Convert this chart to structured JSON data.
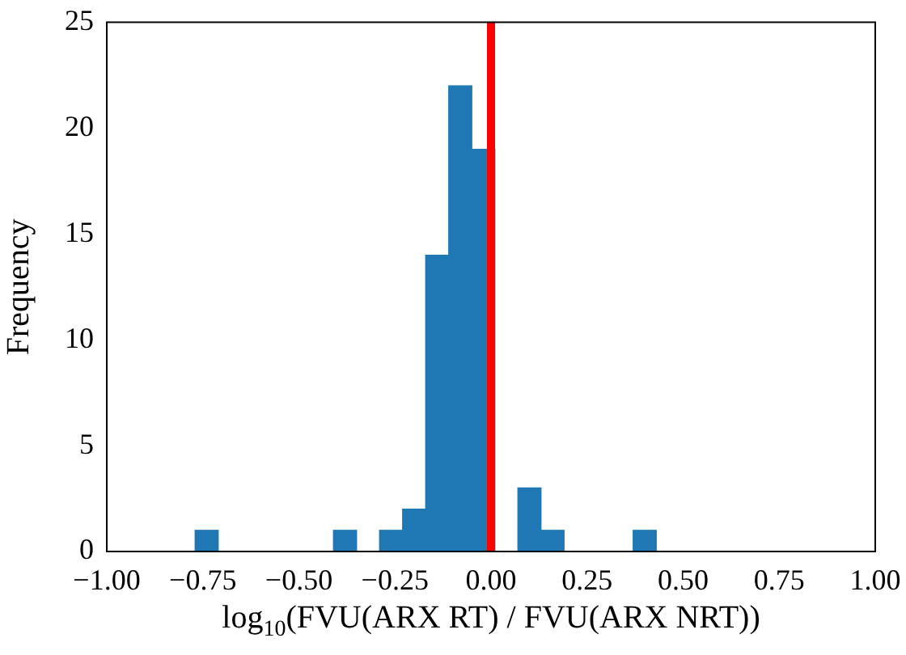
{
  "chart_data": {
    "type": "histogram",
    "xlabel": "log$_{10}$(FVU(ARX RT) / FVU(ARX NRT))",
    "ylabel": "Frequency",
    "bins": [
      -0.77,
      -0.71,
      -0.65,
      -0.59,
      -0.53,
      -0.47,
      -0.41,
      -0.35,
      -0.29,
      -0.23,
      -0.17,
      -0.11,
      -0.05,
      0.01,
      0.07,
      0.13,
      0.19,
      0.25,
      0.31,
      0.37,
      0.43
    ],
    "values": [
      1,
      0,
      0,
      0,
      0,
      0,
      1,
      0,
      1,
      2,
      14,
      22,
      19,
      0,
      3,
      1,
      0,
      0,
      0,
      1
    ],
    "color": "#1f77b4",
    "xlim": [
      -1,
      1
    ],
    "xticks": [
      {
        "value": -1,
        "label": "−1.00"
      },
      {
        "value": -0.75,
        "label": "−0.75"
      },
      {
        "value": -0.5,
        "label": "−0.50"
      },
      {
        "value": -0.25,
        "label": "−0.25"
      },
      {
        "value": 0,
        "label": "0.00"
      },
      {
        "value": 0.25,
        "label": "0.25"
      },
      {
        "value": 0.5,
        "label": "0.50"
      },
      {
        "value": 0.75,
        "label": "0.75"
      },
      {
        "value": 1,
        "label": "1.00"
      }
    ],
    "ylim": [
      0,
      25
    ],
    "yticks": [
      0,
      5,
      10,
      15,
      20,
      25
    ],
    "ref_lines": [
      {
        "axis": "x",
        "value": 0,
        "color": "#ff0000"
      }
    ]
  }
}
